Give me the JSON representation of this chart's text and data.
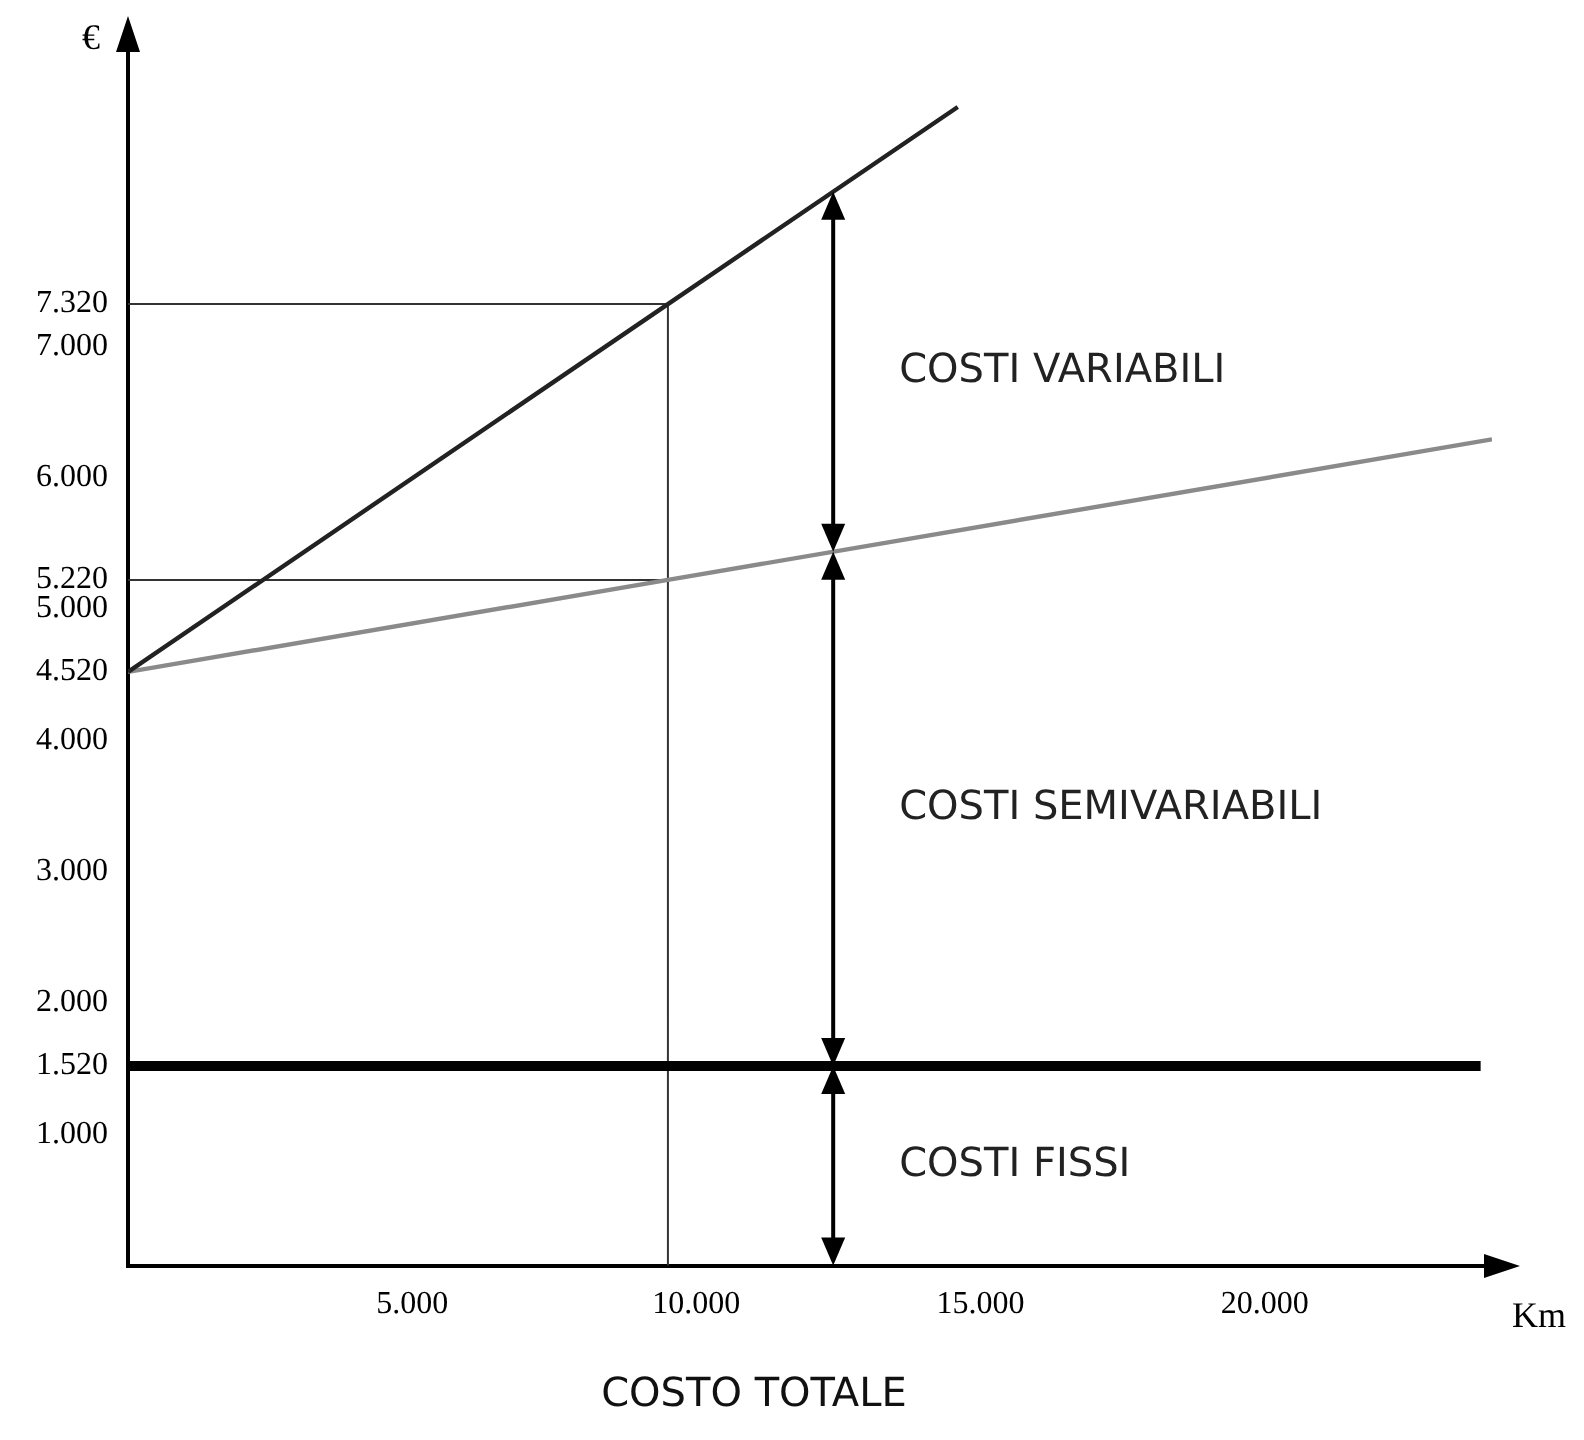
{
  "chart_data": {
    "type": "line",
    "title": "COSTO TOTALE",
    "xlabel": "Km",
    "ylabel": "€",
    "xlim": [
      0,
      24000
    ],
    "ylim": [
      0,
      9300
    ],
    "xticks": [
      {
        "value": 5000,
        "label": "5.000"
      },
      {
        "value": 10000,
        "label": "10.000"
      },
      {
        "value": 15000,
        "label": "15.000"
      },
      {
        "value": 20000,
        "label": "20.000"
      }
    ],
    "yticks": [
      {
        "value": 1000,
        "label": "1.000"
      },
      {
        "value": 1520,
        "label": "1.520"
      },
      {
        "value": 2000,
        "label": "2.000"
      },
      {
        "value": 3000,
        "label": "3.000"
      },
      {
        "value": 4000,
        "label": "4.000"
      },
      {
        "value": 4520,
        "label": "4.520"
      },
      {
        "value": 5000,
        "label": "5.000"
      },
      {
        "value": 5220,
        "label": "5.220"
      },
      {
        "value": 6000,
        "label": "6.000"
      },
      {
        "value": 7000,
        "label": "7.000"
      },
      {
        "value": 7320,
        "label": "7.320"
      }
    ],
    "series": [
      {
        "color": "#222222",
        "x": [
          0,
          9500,
          14600
        ],
        "values": [
          4520,
          7320,
          8820
        ]
      },
      {
        "color": "#8a8a8a",
        "x": [
          0,
          9500,
          24000
        ],
        "values": [
          4520,
          5220,
          6290
        ]
      },
      {
        "color": "#000000",
        "x": [
          0,
          23800
        ],
        "values": [
          1520,
          1520
        ]
      },
      {
        "color": "#333333",
        "x": [
          0,
          9500,
          9500
        ],
        "values": [
          7320,
          7320,
          0
        ]
      },
      {
        "color": "#333333",
        "x": [
          0,
          9500
        ],
        "values": [
          5220,
          5220
        ]
      }
    ],
    "annotations": [
      "COSTI VARIABILI",
      "COSTI SEMIVARIABILI",
      "COSTI FISSI"
    ],
    "grid": false,
    "legend": false,
    "marker": "none",
    "line_style": "solid"
  }
}
